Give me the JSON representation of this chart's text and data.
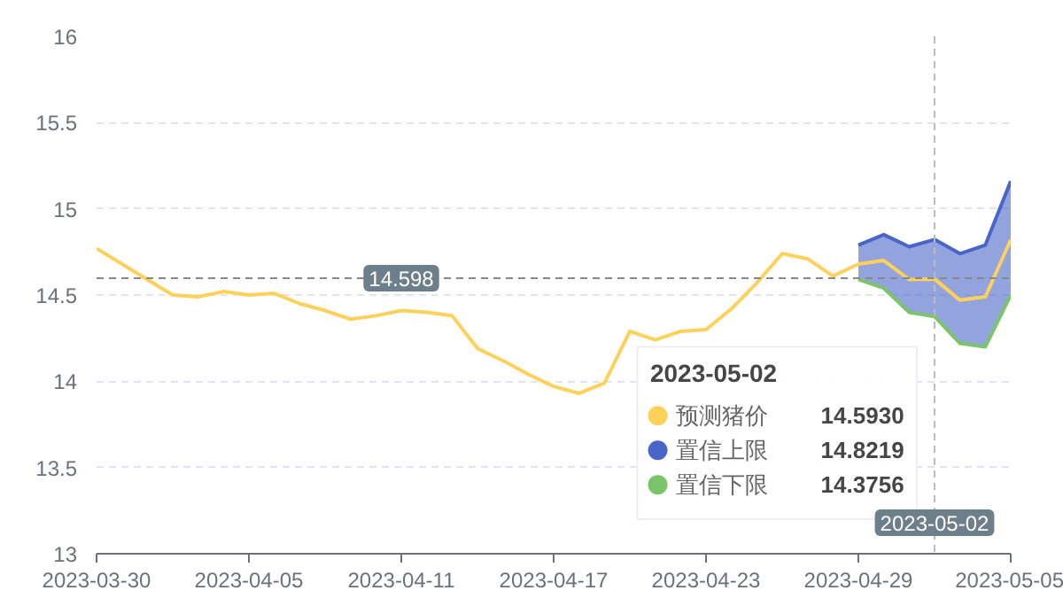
{
  "chart_data": {
    "type": "line",
    "x": [
      "2023-03-30",
      "2023-03-31",
      "2023-04-01",
      "2023-04-02",
      "2023-04-03",
      "2023-04-04",
      "2023-04-05",
      "2023-04-06",
      "2023-04-07",
      "2023-04-08",
      "2023-04-09",
      "2023-04-10",
      "2023-04-11",
      "2023-04-12",
      "2023-04-13",
      "2023-04-14",
      "2023-04-15",
      "2023-04-16",
      "2023-04-17",
      "2023-04-18",
      "2023-04-19",
      "2023-04-20",
      "2023-04-21",
      "2023-04-22",
      "2023-04-23",
      "2023-04-24",
      "2023-04-25",
      "2023-04-26",
      "2023-04-27",
      "2023-04-28",
      "2023-04-29",
      "2023-04-30",
      "2023-05-01",
      "2023-05-02",
      "2023-05-03",
      "2023-05-04",
      "2023-05-05"
    ],
    "series": [
      {
        "name": "置信上限",
        "type": "area",
        "color": "#4a65c8",
        "values": [
          null,
          null,
          null,
          null,
          null,
          null,
          null,
          null,
          null,
          null,
          null,
          null,
          null,
          null,
          null,
          null,
          null,
          null,
          null,
          null,
          null,
          null,
          null,
          null,
          null,
          null,
          null,
          null,
          null,
          null,
          14.79,
          14.85,
          14.78,
          14.8219,
          14.74,
          14.79,
          15.16
        ]
      },
      {
        "name": "置信下限",
        "color": "#7cc46a",
        "values": [
          null,
          null,
          null,
          null,
          null,
          null,
          null,
          null,
          null,
          null,
          null,
          null,
          null,
          null,
          null,
          null,
          null,
          null,
          null,
          null,
          null,
          null,
          null,
          null,
          null,
          null,
          null,
          null,
          null,
          null,
          14.59,
          14.54,
          14.4,
          14.3756,
          14.22,
          14.2,
          14.5
        ]
      },
      {
        "name": "预测猪价",
        "color": "#fdd15a",
        "values": [
          14.77,
          14.68,
          14.59,
          14.5,
          14.49,
          14.52,
          14.5,
          14.51,
          14.45,
          14.41,
          14.36,
          14.38,
          14.41,
          14.4,
          14.38,
          14.19,
          14.12,
          14.04,
          13.97,
          13.93,
          13.99,
          14.29,
          14.24,
          14.29,
          14.3,
          14.42,
          14.57,
          14.74,
          14.71,
          14.61,
          14.68,
          14.7,
          14.59,
          14.593,
          14.47,
          14.49,
          14.82
        ]
      }
    ],
    "ylim": [
      13,
      16
    ],
    "yticks": [
      13,
      13.5,
      14,
      14.5,
      15,
      15.5,
      16
    ],
    "xlim": [
      "2023-03-30",
      "2023-05-05"
    ],
    "xticks": [
      "2023-03-30",
      "2023-04-05",
      "2023-04-11",
      "2023-04-17",
      "2023-04-23",
      "2023-04-29",
      "2023-05-05"
    ],
    "grid": "y",
    "legend": "bottom",
    "legend_title": "2023-05-02",
    "annotations": [
      "14.5930",
      "14.8219",
      "14.3756"
    ],
    "ref_lines": [
      {
        "axis": "y",
        "value": 14.598,
        "label": "14.598",
        "color": "#888888",
        "line_style": "dashed"
      },
      {
        "axis": "x",
        "value": "2023-05-02",
        "label": "2023-05-02",
        "color": "#bbbbbb",
        "line_style": "dashed"
      }
    ]
  }
}
